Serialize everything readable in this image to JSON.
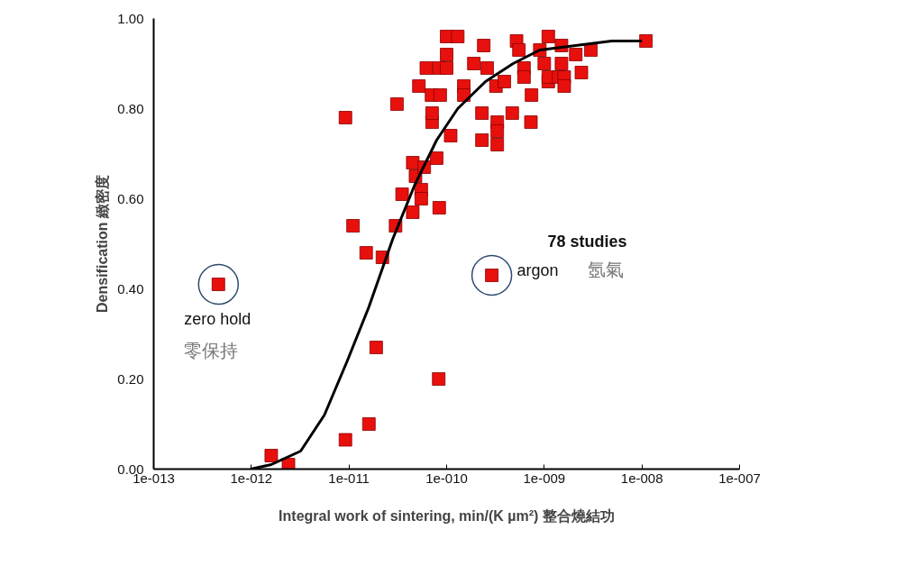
{
  "chart_data": {
    "type": "scatter",
    "xlabel": "Integral work of sintering, min/(K µm²) 整合燒結功",
    "ylabel": "Densification 緻密度",
    "log": "x",
    "xlim": [
      1e-13,
      1e-07
    ],
    "ylim": [
      0,
      1.0
    ],
    "xticks": [
      {
        "value": 1e-13,
        "label": "1e-013"
      },
      {
        "value": 1e-12,
        "label": "1e-012"
      },
      {
        "value": 1e-11,
        "label": "1e-011"
      },
      {
        "value": 1e-10,
        "label": "1e-010"
      },
      {
        "value": 1e-09,
        "label": "1e-009"
      },
      {
        "value": 1e-08,
        "label": "1e-008"
      },
      {
        "value": 1e-07,
        "label": "1e-007"
      }
    ],
    "yticks": [
      {
        "value": 0,
        "label": "0.00"
      },
      {
        "value": 0.2,
        "label": "0.20"
      },
      {
        "value": 0.4,
        "label": "0.40"
      },
      {
        "value": 0.6,
        "label": "0.60"
      },
      {
        "value": 0.8,
        "label": "0.80"
      },
      {
        "value": 1.0,
        "label": "1.00"
      }
    ],
    "grid": false,
    "marker": "square",
    "series": [
      {
        "color": "#e8100c",
        "x": [
          4.6e-13,
          1.6e-12,
          2.4e-12,
          9.2e-12,
          1.6e-11,
          1.9e-11,
          1.1e-11,
          1.5e-11,
          2.2e-11,
          9.2e-12,
          3.1e-11,
          3e-11,
          3.5e-11,
          4.5e-11,
          4.5e-11,
          4.8e-11,
          5.5e-11,
          5.5e-11,
          5.9e-11,
          8.4e-11,
          8.3e-11,
          7.9e-11,
          7.1e-11,
          7.1e-11,
          5.2e-11,
          6.2e-11,
          7e-11,
          8.4e-11,
          8.6e-11,
          1e-10,
          1.3e-10,
          1e-10,
          1e-10,
          1.1e-10,
          1.5e-10,
          1.5e-10,
          1.9e-10,
          2.4e-10,
          2.6e-10,
          2.3e-10,
          2.3e-10,
          2.9e-10,
          3.3e-10,
          3.3e-10,
          3.3e-10,
          3.2e-10,
          3.9e-10,
          4.7e-10,
          5.2e-10,
          5.5e-10,
          6.2e-10,
          6.2e-10,
          7.4e-10,
          7.3e-10,
          9e-10,
          1e-09,
          1.1e-09,
          1.1e-09,
          1.1e-09,
          1.4e-09,
          1.5e-09,
          1.5e-09,
          1.6e-09,
          1.6e-09,
          2.1e-09,
          2.4e-09,
          3e-09,
          1.1e-08
        ],
        "values": [
          0.41,
          0.03,
          0.01,
          0.065,
          0.1,
          0.27,
          0.54,
          0.48,
          0.47,
          0.78,
          0.81,
          0.54,
          0.61,
          0.57,
          0.68,
          0.65,
          0.62,
          0.6,
          0.67,
          0.58,
          0.2,
          0.69,
          0.77,
          0.79,
          0.85,
          0.89,
          0.83,
          0.89,
          0.83,
          0.96,
          0.96,
          0.92,
          0.89,
          0.74,
          0.85,
          0.83,
          0.9,
          0.94,
          0.89,
          0.79,
          0.73,
          0.43,
          0.77,
          0.75,
          0.72,
          0.85,
          0.86,
          0.79,
          0.95,
          0.93,
          0.89,
          0.87,
          0.83,
          0.77,
          0.93,
          0.9,
          0.86,
          0.87,
          0.96,
          0.87,
          0.94,
          0.9,
          0.87,
          0.85,
          0.92,
          0.88,
          0.93,
          0.95
        ]
      },
      {
        "type": "line",
        "color": "#000000",
        "marker": "none",
        "line_style": "solid",
        "x": [
          9.8e-13,
          1.6e-12,
          3.2e-12,
          5.6e-12,
          9.6e-12,
          1.6e-11,
          2.8e-11,
          4.7e-11,
          7.9e-11,
          1.3e-10,
          2.5e-10,
          4.8e-10,
          9e-10,
          2.1e-09,
          4.9e-09,
          1e-08
        ],
        "values": [
          0.0,
          0.01,
          0.04,
          0.12,
          0.24,
          0.36,
          0.51,
          0.63,
          0.73,
          0.8,
          0.86,
          0.9,
          0.93,
          0.94,
          0.95,
          0.95
        ]
      }
    ],
    "annotations": [
      {
        "text": "zero hold",
        "x": 4.6e-13,
        "y": 0.41
      },
      "零保持",
      {
        "text": "argon",
        "x": 2.9e-10,
        "y": 0.43
      },
      "氬氣",
      "78 studies"
    ]
  }
}
